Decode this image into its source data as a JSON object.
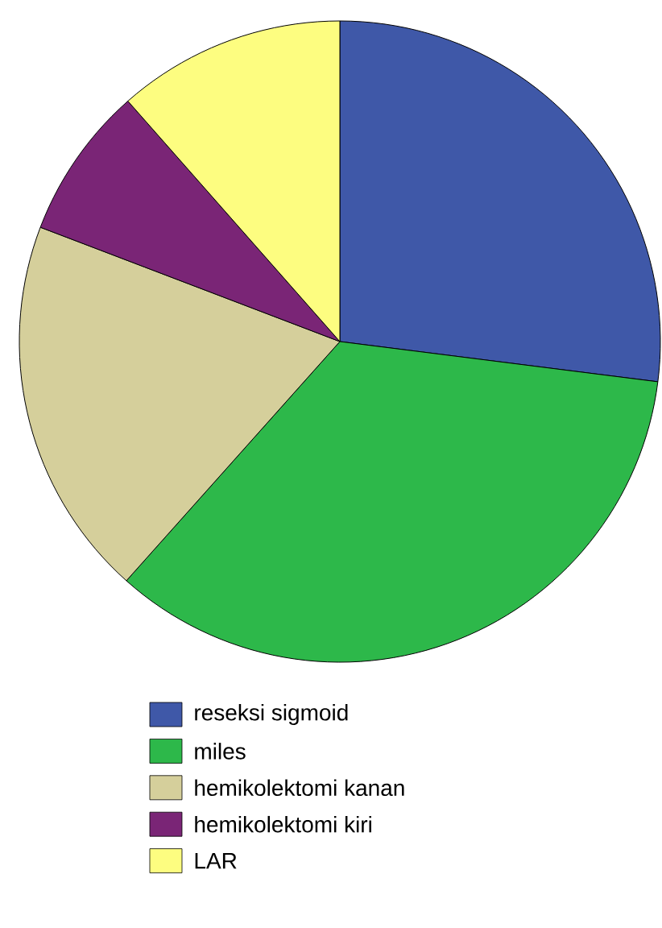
{
  "chart_data": {
    "type": "pie",
    "categories": [
      "reseksi sigmoid",
      "miles",
      "hemikolektomi kanan",
      "hemikolektomi kiri",
      "LAR"
    ],
    "values": [
      27,
      34.6,
      19.2,
      7.7,
      11.5
    ],
    "colors": [
      "#3f58a8",
      "#2db84a",
      "#d5cf9b",
      "#7a2576",
      "#fdfd80"
    ],
    "legend": "bottom"
  }
}
